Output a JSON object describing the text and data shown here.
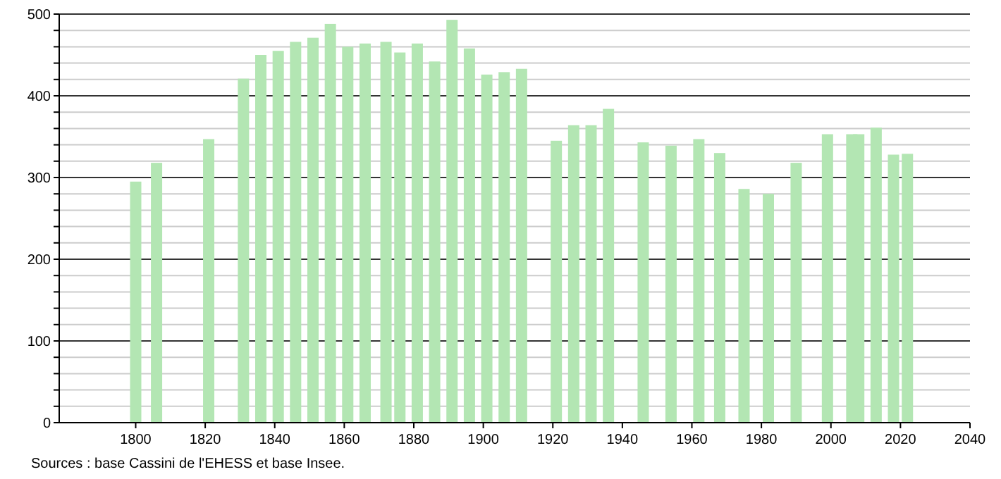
{
  "chart_data": {
    "type": "bar",
    "x": [
      1800,
      1806,
      1821,
      1831,
      1836,
      1841,
      1846,
      1851,
      1856,
      1861,
      1866,
      1872,
      1876,
      1881,
      1886,
      1891,
      1896,
      1901,
      1906,
      1911,
      1921,
      1926,
      1931,
      1936,
      1946,
      1954,
      1962,
      1968,
      1975,
      1982,
      1990,
      1999,
      2006,
      2008,
      2013,
      2018,
      2022
    ],
    "values": [
      295,
      318,
      347,
      421,
      450,
      455,
      466,
      471,
      488,
      460,
      464,
      466,
      453,
      464,
      442,
      493,
      458,
      426,
      429,
      433,
      345,
      364,
      364,
      384,
      343,
      339,
      347,
      330,
      286,
      280,
      318,
      353,
      353,
      353,
      361,
      328,
      329
    ],
    "color": "#b3e6b3",
    "xlim": [
      1778,
      2040
    ],
    "xticks": [
      1800,
      1820,
      1840,
      1860,
      1880,
      1900,
      1920,
      1940,
      1960,
      1980,
      2000,
      2020,
      2040
    ],
    "ylim": [
      0,
      500
    ],
    "yticks": [
      0,
      {
        "value": 20,
        "label": null
      },
      {
        "value": 40,
        "label": null
      },
      {
        "value": 60,
        "label": null
      },
      {
        "value": 80,
        "label": null
      },
      100,
      {
        "value": 120,
        "label": null
      },
      {
        "value": 140,
        "label": null
      },
      {
        "value": 160,
        "label": null
      },
      {
        "value": 180,
        "label": null
      },
      200,
      {
        "value": 220,
        "label": null
      },
      {
        "value": 240,
        "label": null
      },
      {
        "value": 260,
        "label": null
      },
      {
        "value": 280,
        "label": null
      },
      300,
      {
        "value": 320,
        "label": null
      },
      {
        "value": 340,
        "label": null
      },
      {
        "value": 360,
        "label": null
      },
      {
        "value": 380,
        "label": null
      },
      400,
      {
        "value": 420,
        "label": null
      },
      {
        "value": 440,
        "label": null
      },
      {
        "value": 460,
        "label": null
      },
      {
        "value": 480,
        "label": null
      },
      500
    ],
    "grid": "y",
    "annotations": [
      "Sources : base Cassini de l'EHESS et base Insee."
    ]
  }
}
